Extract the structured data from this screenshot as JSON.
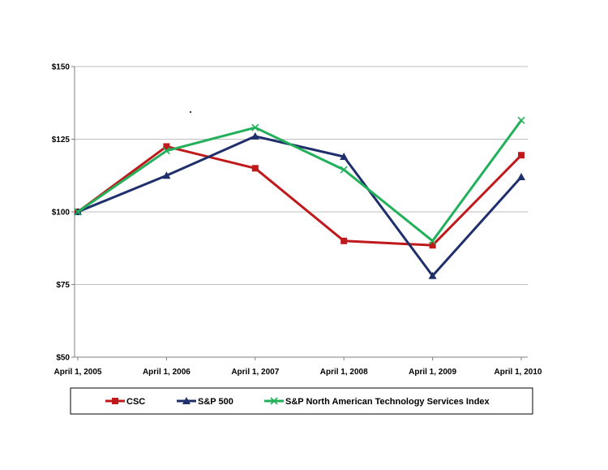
{
  "chart_data": {
    "type": "line",
    "title": "",
    "xlabel": "",
    "ylabel": "",
    "categories": [
      "April 1, 2005",
      "April 1, 2006",
      "April 1, 2007",
      "April 1, 2008",
      "April 1, 2009",
      "April 1, 2010"
    ],
    "ylim": [
      50,
      150
    ],
    "yticks": [
      50,
      75,
      100,
      125,
      150
    ],
    "ytick_labels": [
      "$50",
      "$75",
      "$100",
      "$125",
      "$150"
    ],
    "grid": "horizontal",
    "legend_position": "bottom",
    "series": [
      {
        "name": "CSC",
        "color": "#C0191C",
        "marker": "square",
        "values": [
          100,
          122.5,
          115,
          90,
          88.5,
          119.5
        ]
      },
      {
        "name": "S&P 500",
        "color": "#1F2F6B",
        "marker": "triangle",
        "values": [
          100,
          112.5,
          126,
          119,
          78,
          112
        ]
      },
      {
        "name": "S&P North American Technology Services Index",
        "color": "#22B15A",
        "marker": "x",
        "values": [
          100,
          121,
          129,
          114.5,
          90,
          131.5
        ]
      }
    ]
  }
}
